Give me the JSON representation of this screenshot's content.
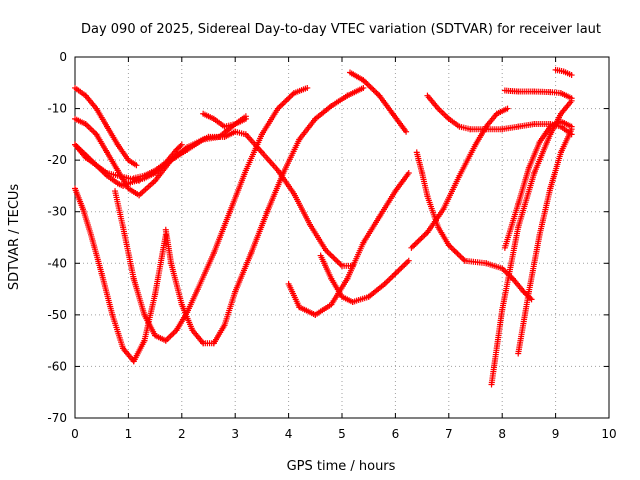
{
  "chart_data": {
    "type": "scatter",
    "title": "Day 090 of 2025, Sidereal Day-to-day VTEC variation (SDTVAR) for receiver laut",
    "xlabel": "GPS time / hours",
    "ylabel": "SDTVAR / TECUs",
    "xlim": [
      0,
      10
    ],
    "ylim": [
      -70,
      0
    ],
    "xticks": [
      0,
      1,
      2,
      3,
      4,
      5,
      6,
      7,
      8,
      9,
      10
    ],
    "yticks": [
      0,
      -10,
      -20,
      -30,
      -40,
      -50,
      -60,
      -70
    ],
    "grid": true,
    "marker": "+",
    "color": "#ff0000",
    "series": [
      {
        "x": [
          0.0,
          0.2,
          0.4,
          0.6,
          0.8,
          1.0,
          1.15
        ],
        "y": [
          -6,
          -7.5,
          -10,
          -13.5,
          -17,
          -20,
          -21
        ]
      },
      {
        "x": [
          0.0,
          0.2,
          0.4,
          0.6,
          0.8,
          1.0,
          1.2,
          1.5,
          1.8,
          2.1,
          2.5,
          2.8,
          3.0,
          3.2,
          3.5,
          3.8,
          4.1,
          4.4,
          4.7,
          5.0,
          5.2
        ],
        "y": [
          -12,
          -13,
          -15,
          -18.5,
          -22,
          -25.5,
          -26.8,
          -24,
          -20,
          -17.5,
          -15.5,
          -15.5,
          -14.5,
          -15,
          -18.5,
          -22,
          -26.5,
          -32.5,
          -37.5,
          -40.5,
          -40.5
        ]
      },
      {
        "x": [
          0.0,
          0.2,
          0.4,
          0.6,
          0.8,
          0.9,
          1.0,
          1.15,
          1.3,
          1.5,
          1.8,
          2.1,
          2.4,
          2.7,
          3.0,
          3.2
        ],
        "y": [
          -17,
          -19,
          -21,
          -23,
          -24.5,
          -25,
          -24.5,
          -24,
          -23.5,
          -22.5,
          -20,
          -18,
          -16,
          -15.5,
          -13,
          -11.5
        ]
      },
      {
        "x": [
          0.0,
          0.2,
          0.4,
          0.6,
          0.8,
          1.0,
          1.2
        ],
        "y": [
          -17,
          -19.5,
          -21,
          -22.5,
          -23,
          -23.5,
          -24
        ]
      },
      {
        "x": [
          1.1,
          1.3,
          1.5,
          1.7,
          1.9,
          2.0
        ],
        "y": [
          -23.5,
          -23,
          -22,
          -20.5,
          -18,
          -17
        ]
      },
      {
        "x": [
          0.0,
          0.15,
          0.3,
          0.5,
          0.7,
          0.9,
          1.1
        ],
        "y": [
          -25.5,
          -29.5,
          -34.5,
          -42,
          -50,
          -56.5,
          -59
        ]
      },
      {
        "x": [
          1.1,
          1.3,
          1.5,
          1.7
        ],
        "y": [
          -59,
          -55,
          -46,
          -34.5
        ]
      },
      {
        "x": [
          0.75,
          0.9,
          1.1,
          1.3,
          1.5,
          1.7,
          1.9,
          2.1,
          2.3,
          2.6,
          2.9,
          3.2,
          3.5,
          3.8,
          4.1,
          4.35
        ],
        "y": [
          -26,
          -33,
          -43,
          -50,
          -54,
          -55,
          -53,
          -49.5,
          -45,
          -38,
          -30,
          -22,
          -15,
          -10,
          -7,
          -6
        ]
      },
      {
        "x": [
          1.7,
          1.8,
          2.0,
          2.2,
          2.4,
          2.6,
          2.8,
          3.0,
          3.3,
          3.6,
          3.9,
          4.2,
          4.5,
          4.8,
          5.1,
          5.4
        ],
        "y": [
          -33.5,
          -40,
          -48,
          -53,
          -55.5,
          -55.5,
          -52,
          -45.5,
          -38,
          -30,
          -22.5,
          -16,
          -12,
          -9.5,
          -7.5,
          -6
        ]
      },
      {
        "x": [
          2.4,
          2.6,
          2.8,
          3.0,
          3.2
        ],
        "y": [
          -11,
          -12,
          -13.5,
          -13,
          -12
        ]
      },
      {
        "x": [
          4.0,
          4.2,
          4.5,
          4.8,
          5.1,
          5.4,
          5.7,
          6.0,
          6.25
        ],
        "y": [
          -44,
          -48.5,
          -50,
          -48,
          -43,
          -36,
          -31,
          -26,
          -22.5
        ]
      },
      {
        "x": [
          4.6,
          4.8,
          5.0,
          5.2,
          5.5,
          5.8,
          6.0,
          6.25
        ],
        "y": [
          -38.5,
          -43,
          -46.5,
          -47.5,
          -46.5,
          -44,
          -42,
          -39.5
        ]
      },
      {
        "x": [
          5.15,
          5.4,
          5.7,
          5.95,
          6.2
        ],
        "y": [
          -3,
          -4.5,
          -7.5,
          -11,
          -14.5
        ]
      },
      {
        "x": [
          6.4,
          6.5,
          6.6,
          6.8,
          7.0,
          7.3,
          7.7,
          8.0,
          8.2,
          8.4,
          8.55
        ],
        "y": [
          -18.5,
          -22.5,
          -27,
          -33,
          -36.5,
          -39.5,
          -40,
          -41,
          -43,
          -45.5,
          -47
        ]
      },
      {
        "x": [
          6.6,
          6.8,
          7.0,
          7.2,
          7.4,
          7.7,
          8.0,
          8.3,
          8.6,
          8.9,
          9.1,
          9.3
        ],
        "y": [
          -7.5,
          -10,
          -12,
          -13.5,
          -14,
          -14,
          -14,
          -13.5,
          -13,
          -13,
          -13.5,
          -15
        ]
      },
      {
        "x": [
          6.3,
          6.6,
          6.9,
          7.2,
          7.5,
          7.7,
          7.9,
          8.1
        ],
        "y": [
          -37,
          -34,
          -29.5,
          -23,
          -17,
          -13.5,
          -11,
          -10
        ]
      },
      {
        "x": [
          8.05,
          8.3,
          8.6,
          8.9,
          9.1,
          9.3
        ],
        "y": [
          -6.5,
          -6.7,
          -6.7,
          -6.8,
          -7,
          -8
        ]
      },
      {
        "x": [
          9.0,
          9.15,
          9.3
        ],
        "y": [
          -2.5,
          -2.8,
          -3.5
        ]
      },
      {
        "x": [
          7.8,
          8.0,
          8.3,
          8.6,
          8.9,
          9.1,
          9.3
        ],
        "y": [
          -63.5,
          -49,
          -33,
          -22.5,
          -15,
          -11,
          -8.5
        ]
      },
      {
        "x": [
          8.05,
          8.3,
          8.5,
          8.7,
          8.9,
          9.1,
          9.3
        ],
        "y": [
          -37,
          -28.5,
          -21.5,
          -16.5,
          -13.5,
          -12.5,
          -13.5
        ]
      },
      {
        "x": [
          8.3,
          8.5,
          8.7,
          8.9,
          9.1,
          9.3
        ],
        "y": [
          -57.5,
          -45.5,
          -34.5,
          -25.5,
          -18.5,
          -14
        ]
      }
    ]
  }
}
